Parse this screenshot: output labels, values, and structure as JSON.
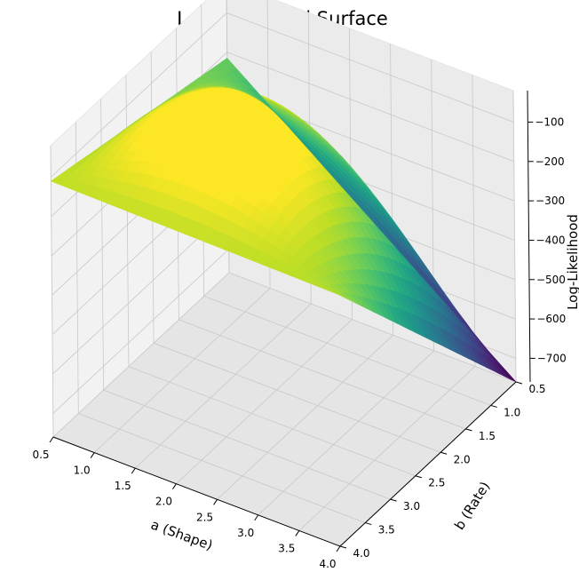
{
  "chart_data": {
    "type": "surface3d",
    "title": "Log-Likelihood Surface",
    "xlabel": "a (Shape)",
    "ylabel": "b (Rate)",
    "zlabel": "Log-Likelihood",
    "x_ticks": [
      0.5,
      1.0,
      1.5,
      2.0,
      2.5,
      3.0,
      3.5,
      4.0
    ],
    "y_ticks": [
      0.5,
      1.0,
      1.5,
      2.0,
      2.5,
      3.0,
      3.5,
      4.0
    ],
    "z_ticks": [
      -100,
      -200,
      -300,
      -400,
      -500,
      -600,
      -700
    ],
    "x_tick_labels": [
      "0.5",
      "1.0",
      "1.5",
      "2.0",
      "2.5",
      "3.0",
      "3.5",
      "4.0"
    ],
    "y_tick_labels": [
      "0.5",
      "1.0",
      "1.5",
      "2.0",
      "2.5",
      "3.0",
      "3.5",
      "4.0"
    ],
    "z_tick_labels": [
      "−100",
      "−200",
      "−300",
      "−400",
      "−500",
      "−600",
      "−700"
    ],
    "xlim": [
      0.5,
      4.0
    ],
    "ylim": [
      0.5,
      4.0
    ],
    "zlim": [
      -760,
      -20
    ],
    "colormap": "viridis",
    "grid": true,
    "corner_values": [
      {
        "a": 0.5,
        "b": 0.5,
        "loglik": -215
      },
      {
        "a": 0.5,
        "b": 4.0,
        "loglik": -110
      },
      {
        "a": 4.0,
        "b": 0.5,
        "loglik": -760
      },
      {
        "a": 4.0,
        "b": 4.0,
        "loglik": -120
      }
    ],
    "peak": {
      "a": 1.6,
      "b": 1.9,
      "loglik": -45
    }
  }
}
